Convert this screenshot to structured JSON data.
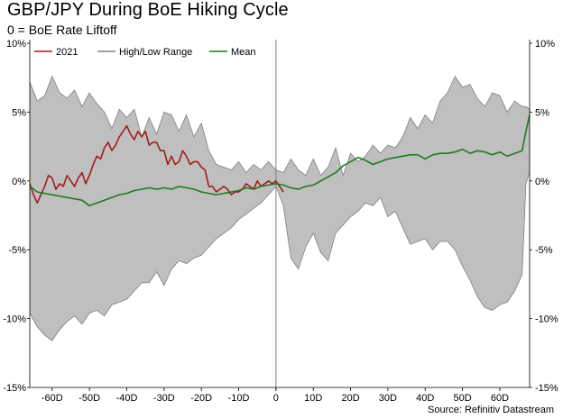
{
  "title": "GBP/JPY During BoE Hiking Cycle",
  "subtitle": "0 = BoE Rate Liftoff",
  "source": "Source: Refinitiv Datastream",
  "colors": {
    "series_2021": "#a31c1c",
    "range_fill": "#bfbfbf",
    "range_line": "#808080",
    "mean": "#1e7a1e",
    "zero_line": "#808080"
  },
  "chart_data": {
    "type": "area",
    "title": "GBP/JPY During BoE Hiking Cycle",
    "subtitle": "0 = BoE Rate Liftoff",
    "xlabel": "",
    "ylabel": "",
    "xlim": [
      -66,
      68
    ],
    "ylim": [
      -15,
      10
    ],
    "y_ticks": [
      10,
      5,
      0,
      -5,
      -10,
      -15
    ],
    "y_tick_labels": [
      "10%",
      "5%",
      "0%",
      "-5%",
      "-10%",
      "-15%"
    ],
    "x_ticks": [
      -60,
      -50,
      -40,
      -30,
      -20,
      -10,
      0,
      10,
      20,
      30,
      40,
      50,
      60
    ],
    "x_tick_labels": [
      "-60D",
      "-50D",
      "-40D",
      "-30D",
      "-20D",
      "-10D",
      "0",
      "10D",
      "20D",
      "30D",
      "40D",
      "50D",
      "60D"
    ],
    "legend_position": "top-left",
    "legend": [
      "2021",
      "High/Low Range",
      "Mean"
    ],
    "grid": false,
    "range": {
      "name": "High/Low Range",
      "x": [
        -66,
        -64,
        -62,
        -60,
        -58,
        -56,
        -54,
        -52,
        -50,
        -48,
        -46,
        -44,
        -42,
        -40,
        -38,
        -36,
        -34,
        -32,
        -30,
        -28,
        -26,
        -24,
        -22,
        -20,
        -18,
        -16,
        -14,
        -12,
        -10,
        -8,
        -6,
        -4,
        -2,
        0,
        2,
        4,
        6,
        8,
        10,
        12,
        14,
        16,
        18,
        20,
        22,
        24,
        26,
        28,
        30,
        32,
        34,
        36,
        38,
        40,
        42,
        44,
        46,
        48,
        50,
        52,
        54,
        56,
        58,
        60,
        62,
        64,
        66,
        67,
        68
      ],
      "high": [
        7.2,
        5.8,
        6.2,
        7.6,
        6.4,
        6.0,
        6.6,
        5.4,
        6.4,
        5.6,
        5.0,
        3.8,
        5.2,
        4.6,
        5.2,
        3.2,
        4.6,
        3.4,
        5.0,
        4.8,
        3.6,
        4.8,
        3.2,
        4.2,
        2.2,
        1.2,
        1.0,
        0.8,
        1.4,
        0.6,
        1.2,
        0.8,
        1.4,
        0.8,
        0.6,
        1.6,
        0.8,
        0.4,
        1.6,
        0.4,
        1.0,
        2.4,
        0.4,
        2.0,
        1.4,
        1.8,
        2.6,
        2.0,
        2.6,
        2.4,
        3.2,
        4.6,
        3.8,
        4.8,
        4.2,
        5.8,
        6.4,
        7.6,
        6.8,
        7.0,
        6.0,
        5.4,
        6.4,
        6.2,
        5.0,
        5.8,
        5.4,
        5.4,
        5.2
      ],
      "low": [
        -9.6,
        -10.6,
        -11.2,
        -11.6,
        -10.8,
        -10.2,
        -9.8,
        -10.4,
        -9.6,
        -9.4,
        -9.8,
        -9.0,
        -8.8,
        -8.6,
        -8.0,
        -7.4,
        -7.4,
        -6.6,
        -7.6,
        -6.4,
        -5.8,
        -6.0,
        -5.6,
        -5.4,
        -4.8,
        -4.2,
        -3.8,
        -3.4,
        -2.8,
        -2.4,
        -2.0,
        -1.6,
        -1.0,
        -0.4,
        -1.8,
        -5.6,
        -6.4,
        -4.8,
        -3.8,
        -5.2,
        -5.8,
        -3.8,
        -3.2,
        -2.6,
        -2.2,
        -1.6,
        -1.8,
        -1.2,
        -2.6,
        -2.2,
        -3.4,
        -4.6,
        -4.4,
        -4.2,
        -5.0,
        -4.4,
        -4.4,
        -5.0,
        -6.2,
        -7.2,
        -8.4,
        -9.2,
        -9.4,
        -9.0,
        -8.8,
        -8.0,
        -6.8,
        -0.2,
        0.6
      ]
    },
    "series": [
      {
        "name": "2021",
        "x": [
          -66,
          -65,
          -64,
          -63,
          -62,
          -61,
          -60,
          -59,
          -58,
          -57,
          -56,
          -55,
          -54,
          -53,
          -52,
          -51,
          -50,
          -49,
          -48,
          -47,
          -46,
          -45,
          -44,
          -43,
          -42,
          -41,
          -40,
          -39,
          -38,
          -37,
          -36,
          -35,
          -34,
          -33,
          -32,
          -31,
          -30,
          -29,
          -28,
          -27,
          -26,
          -25,
          -24,
          -23,
          -22,
          -21,
          -20,
          -19,
          -18,
          -17,
          -16,
          -15,
          -14,
          -13,
          -12,
          -11,
          -10,
          -9,
          -8,
          -7,
          -6,
          -5,
          -4,
          -3,
          -2,
          -1,
          0,
          1,
          2
        ],
        "values": [
          -0.2,
          -1.0,
          -1.6,
          -1.0,
          -0.4,
          0.4,
          0.2,
          -0.6,
          -0.2,
          -0.4,
          0.4,
          0.0,
          -0.4,
          0.2,
          0.6,
          -0.2,
          0.4,
          1.2,
          1.8,
          1.6,
          2.4,
          2.8,
          2.2,
          2.6,
          3.2,
          3.6,
          4.0,
          3.4,
          3.0,
          3.6,
          3.2,
          3.6,
          2.6,
          2.8,
          2.8,
          2.2,
          2.2,
          1.2,
          1.8,
          1.2,
          1.4,
          2.2,
          1.8,
          1.2,
          1.4,
          1.4,
          1.0,
          0.8,
          -0.4,
          -0.4,
          -0.8,
          -0.6,
          -0.4,
          -0.6,
          -1.0,
          -0.8,
          -0.8,
          -0.6,
          -0.2,
          -0.4,
          -0.6,
          0.0,
          -0.4,
          -0.2,
          0.0,
          -0.2,
          0.0,
          -0.4,
          -0.8
        ]
      },
      {
        "name": "Mean",
        "x": [
          -66,
          -64,
          -62,
          -60,
          -58,
          -56,
          -54,
          -52,
          -50,
          -48,
          -46,
          -44,
          -42,
          -40,
          -38,
          -36,
          -34,
          -32,
          -30,
          -28,
          -26,
          -24,
          -22,
          -20,
          -18,
          -16,
          -14,
          -12,
          -10,
          -8,
          -6,
          -4,
          -2,
          0,
          2,
          4,
          6,
          8,
          10,
          12,
          14,
          16,
          18,
          20,
          22,
          24,
          26,
          28,
          30,
          32,
          34,
          36,
          38,
          40,
          42,
          44,
          46,
          48,
          50,
          52,
          54,
          56,
          58,
          60,
          62,
          64,
          66,
          67,
          68
        ],
        "values": [
          -0.4,
          -0.8,
          -0.9,
          -1.0,
          -1.1,
          -1.2,
          -1.3,
          -1.4,
          -1.8,
          -1.6,
          -1.4,
          -1.2,
          -1.0,
          -0.9,
          -0.7,
          -0.6,
          -0.5,
          -0.6,
          -0.5,
          -0.6,
          -0.4,
          -0.5,
          -0.6,
          -0.8,
          -0.9,
          -1.0,
          -0.9,
          -0.8,
          -0.7,
          -0.5,
          -0.6,
          -0.4,
          -0.3,
          -0.2,
          -0.3,
          -0.5,
          -0.6,
          -0.4,
          -0.3,
          0.0,
          0.3,
          0.6,
          1.1,
          1.4,
          1.7,
          1.5,
          1.2,
          1.4,
          1.6,
          1.7,
          1.8,
          1.9,
          1.9,
          1.6,
          1.9,
          2.0,
          2.0,
          2.1,
          2.3,
          2.0,
          2.2,
          2.1,
          1.9,
          2.1,
          1.8,
          2.0,
          2.2,
          3.6,
          4.8
        ]
      }
    ]
  }
}
